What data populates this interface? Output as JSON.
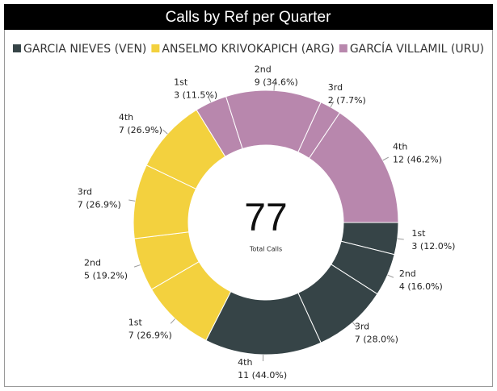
{
  "chart_data": {
    "type": "donut",
    "title": "Calls by Ref per Quarter",
    "categories": [
      "1st",
      "2nd",
      "3rd",
      "4th"
    ],
    "series": [
      {
        "name": "GARCIA NIEVES (VEN)",
        "color": "#364447",
        "values": [
          3,
          4,
          7,
          11
        ],
        "value_labels": [
          "3 (12.0%)",
          "4 (16.0%)",
          "7 (28.0%)",
          "11 (44.0%)"
        ]
      },
      {
        "name": "ANSELMO KRIVOKAPICH (ARG)",
        "color": "#f3d13e",
        "values": [
          7,
          5,
          7,
          7
        ],
        "value_labels": [
          "7 (26.9%)",
          "5 (19.2%)",
          "7 (26.9%)",
          "7 (26.9%)"
        ]
      },
      {
        "name": "GARCÍA VILLAMIL (URU)",
        "color": "#b887ad",
        "values": [
          3,
          9,
          2,
          12
        ],
        "value_labels": [
          "3 (11.5%)",
          "9 (34.6%)",
          "2 (7.7%)",
          "12 (46.2%)"
        ]
      }
    ],
    "center_value": 77,
    "center_label": "Total Calls"
  }
}
